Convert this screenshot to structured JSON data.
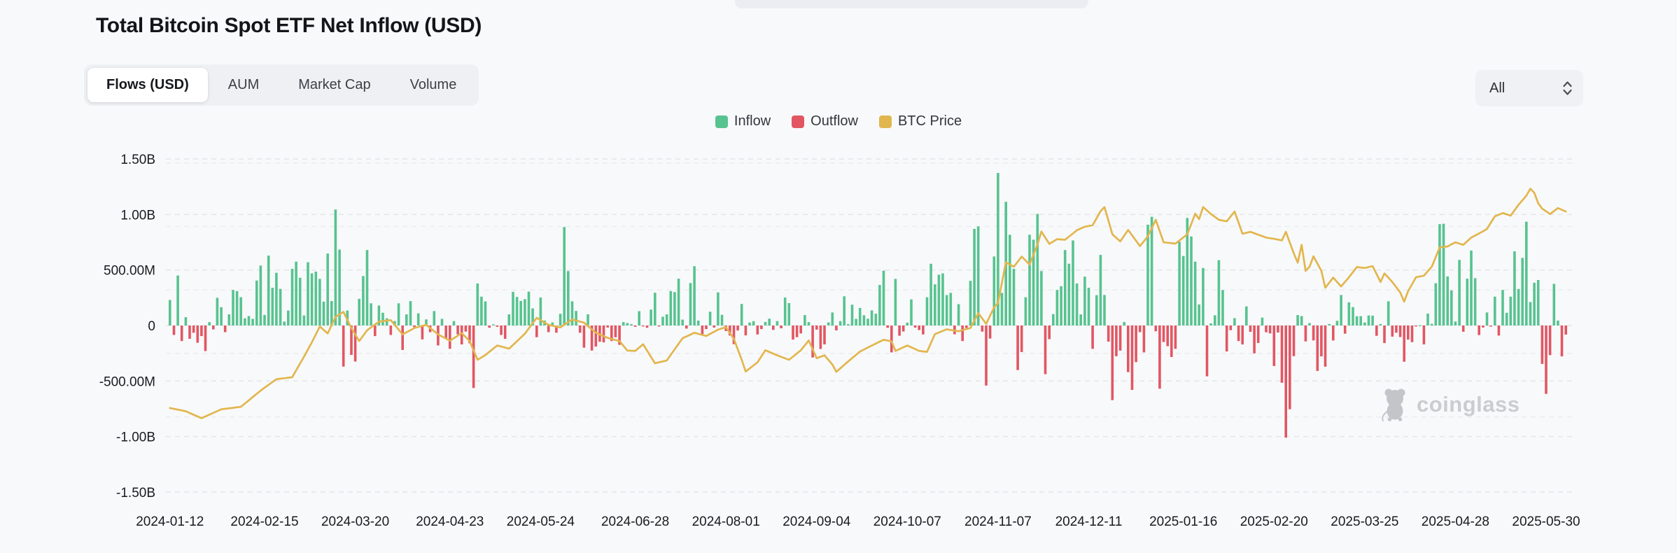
{
  "header": {
    "title": "Total Bitcoin Spot ETF Net Inflow (USD)"
  },
  "tabs": {
    "items": [
      {
        "label": "Flows (USD)",
        "active": true
      },
      {
        "label": "AUM",
        "active": false
      },
      {
        "label": "Market Cap",
        "active": false
      },
      {
        "label": "Volume",
        "active": false
      }
    ]
  },
  "range_select": {
    "value": "All"
  },
  "legend": [
    {
      "label": "Inflow",
      "color": "#57C390"
    },
    {
      "label": "Outflow",
      "color": "#E25663"
    },
    {
      "label": "BTC Price",
      "color": "#E2B64E"
    }
  ],
  "watermark": {
    "text": "coinglass"
  },
  "chart_data": {
    "type": "bar+line",
    "title": "Total Bitcoin Spot ETF Net Inflow (USD)",
    "subtitle": "",
    "legend_position": "top-center",
    "grid": "dashed-horizontal",
    "unit": "USD (M = millions, B = billions)",
    "colors": {
      "inflow": "#57C390",
      "outflow": "#E25663",
      "btc_price": "#E2B64E"
    },
    "y_axis": {
      "min_M": -1500,
      "max_M": 1500,
      "ticks": [
        {
          "v": 1500,
          "label": "1.50B"
        },
        {
          "v": 1000,
          "label": "1.00B"
        },
        {
          "v": 500,
          "label": "500.00M"
        },
        {
          "v": 0,
          "label": "0"
        },
        {
          "v": -500,
          "label": "-500.00M"
        },
        {
          "v": -1000,
          "label": "-1.00B"
        },
        {
          "v": -1500,
          "label": "-1.50B"
        }
      ]
    },
    "x_ticks": [
      {
        "i": 0,
        "label": "2024-01-12"
      },
      {
        "i": 24,
        "label": "2024-02-15"
      },
      {
        "i": 47,
        "label": "2024-03-20"
      },
      {
        "i": 71,
        "label": "2024-04-23"
      },
      {
        "i": 94,
        "label": "2024-05-24"
      },
      {
        "i": 118,
        "label": "2024-06-28"
      },
      {
        "i": 141,
        "label": "2024-08-01"
      },
      {
        "i": 164,
        "label": "2024-09-04"
      },
      {
        "i": 187,
        "label": "2024-10-07"
      },
      {
        "i": 210,
        "label": "2024-11-07"
      },
      {
        "i": 233,
        "label": "2024-12-11"
      },
      {
        "i": 257,
        "label": "2025-01-16"
      },
      {
        "i": 280,
        "label": "2025-02-20"
      },
      {
        "i": 303,
        "label": "2025-03-25"
      },
      {
        "i": 326,
        "label": "2025-04-28"
      },
      {
        "i": 349,
        "label": "2025-05-30"
      }
    ],
    "start_date": "2024-01-12",
    "series_note": "flows_M = daily net flow per US trading day in USD millions (positive = inflow bar, negative = outflow bar), estimated from chart",
    "flows_M": [
      230,
      -85,
      450,
      -140,
      75,
      -120,
      -65,
      -155,
      -95,
      -230,
      30,
      -35,
      250,
      165,
      -60,
      100,
      320,
      310,
      255,
      65,
      85,
      60,
      405,
      540,
      95,
      630,
      340,
      475,
      330,
      35,
      135,
      510,
      575,
      430,
      90,
      570,
      470,
      485,
      420,
      215,
      648,
      220,
      1045,
      684,
      -370,
      135,
      -265,
      -325,
      240,
      445,
      680,
      200,
      -95,
      180,
      115,
      65,
      -85,
      40,
      200,
      -220,
      100,
      220,
      -15,
      110,
      -125,
      55,
      -60,
      130,
      -180,
      60,
      -120,
      -210,
      40,
      -80,
      -170,
      -55,
      -160,
      -563,
      378,
      260,
      217,
      -20,
      10,
      -12,
      -85,
      -120,
      100,
      303,
      257,
      221,
      237,
      305,
      154,
      -105,
      252,
      45,
      -60,
      28,
      -65,
      105,
      887,
      490,
      218,
      131,
      -65,
      -200,
      101,
      -226,
      -190,
      -146,
      -152,
      -18,
      -140,
      -106,
      -174,
      31,
      22,
      12,
      -12,
      129,
      -9,
      -20,
      143,
      295,
      -3,
      79,
      100,
      310,
      301,
      422,
      53,
      -28,
      383,
      534,
      44,
      -78,
      -32,
      124,
      -18,
      298,
      96,
      -50,
      -90,
      -168,
      -45,
      194,
      -89,
      27,
      39,
      -81,
      -32,
      32,
      62,
      -40,
      40,
      -25,
      252,
      202,
      -127,
      -105,
      -71,
      94,
      30,
      -288,
      -37,
      -211,
      -170,
      28,
      117,
      -44,
      39,
      263,
      12,
      187,
      60,
      158,
      92,
      61,
      136,
      106,
      365,
      494,
      -21,
      -242,
      420,
      -92,
      -54,
      26,
      235,
      -19,
      -41,
      -81,
      254,
      556,
      371,
      458,
      470,
      274,
      294,
      -79,
      192,
      -140,
      -22,
      402,
      870,
      893,
      -55,
      -541,
      -117,
      622,
      1374,
      293,
      1114,
      817,
      510,
      -401,
      -239,
      255,
      818,
      773,
      1005,
      490,
      -438,
      -123,
      103,
      320,
      354,
      680,
      557,
      766,
      378,
      100,
      440,
      340,
      -210,
      273,
      636,
      275,
      -145,
      -672,
      -277,
      -226,
      31,
      -420,
      -580,
      -330,
      -60,
      -242,
      908,
      979,
      -52,
      -569,
      -149,
      -186,
      -284,
      -210,
      754,
      626,
      969,
      802,
      575,
      189,
      518,
      -458,
      19,
      92,
      588,
      319,
      -234,
      -42,
      66,
      -140,
      -171,
      172,
      -57,
      -251,
      -157,
      71,
      -61,
      -71,
      -365,
      -63,
      -516,
      -1010,
      -754,
      -276,
      94,
      85,
      -143,
      22,
      -134,
      -409,
      -278,
      -371,
      13,
      -135,
      42,
      275,
      -74,
      209,
      166,
      83,
      84,
      27,
      90,
      89,
      -93,
      13,
      -158,
      218,
      -100,
      -65,
      -104,
      -326,
      -127,
      -150,
      -1,
      2,
      -170,
      107,
      15,
      381,
      913,
      917,
      442,
      316,
      36,
      591,
      -56,
      422,
      675,
      426,
      -86,
      -18,
      117,
      -10,
      260,
      -91,
      320,
      115,
      260,
      668,
      329,
      609,
      935,
      211,
      385,
      410,
      -346,
      -616,
      -267,
      375,
      44,
      -278,
      -82
    ],
    "btc_price": {
      "axis": {
        "min_usd": 16350,
        "max_usd": 121250
      },
      "price_grid_usd": [
        40000,
        60000,
        80000,
        100000,
        120000
      ],
      "keyframes": [
        [
          0,
          42800
        ],
        [
          4,
          41800
        ],
        [
          8,
          39600
        ],
        [
          13,
          42400
        ],
        [
          18,
          43200
        ],
        [
          23,
          48300
        ],
        [
          27,
          51900
        ],
        [
          31,
          52500
        ],
        [
          34,
          59000
        ],
        [
          36,
          63500
        ],
        [
          38,
          68500
        ],
        [
          40,
          66300
        ],
        [
          42,
          71500
        ],
        [
          44,
          73100
        ],
        [
          46,
          68000
        ],
        [
          48,
          63900
        ],
        [
          50,
          67300
        ],
        [
          53,
          70000
        ],
        [
          56,
          70500
        ],
        [
          59,
          66000
        ],
        [
          62,
          68000
        ],
        [
          65,
          69000
        ],
        [
          68,
          66000
        ],
        [
          71,
          64000
        ],
        [
          74,
          66400
        ],
        [
          76,
          63900
        ],
        [
          78,
          58000
        ],
        [
          80,
          59500
        ],
        [
          83,
          62500
        ],
        [
          86,
          61500
        ],
        [
          90,
          66200
        ],
        [
          93,
          71200
        ],
        [
          96,
          69000
        ],
        [
          99,
          68200
        ],
        [
          102,
          70700
        ],
        [
          105,
          69700
        ],
        [
          108,
          66500
        ],
        [
          111,
          64900
        ],
        [
          114,
          63900
        ],
        [
          116,
          60900
        ],
        [
          118,
          60800
        ],
        [
          120,
          62900
        ],
        [
          123,
          56900
        ],
        [
          126,
          57800
        ],
        [
          130,
          64800
        ],
        [
          133,
          66500
        ],
        [
          136,
          65500
        ],
        [
          139,
          67500
        ],
        [
          141,
          68300
        ],
        [
          143,
          64600
        ],
        [
          145,
          58000
        ],
        [
          146,
          54300
        ],
        [
          149,
          57200
        ],
        [
          151,
          61000
        ],
        [
          154,
          59400
        ],
        [
          157,
          58000
        ],
        [
          160,
          61000
        ],
        [
          162,
          64100
        ],
        [
          164,
          58500
        ],
        [
          166,
          59400
        ],
        [
          168,
          56500
        ],
        [
          169,
          54200
        ],
        [
          172,
          57500
        ],
        [
          175,
          60600
        ],
        [
          178,
          62500
        ],
        [
          181,
          64300
        ],
        [
          183,
          63800
        ],
        [
          184,
          60800
        ],
        [
          187,
          62500
        ],
        [
          190,
          60800
        ],
        [
          192,
          60500
        ],
        [
          194,
          66100
        ],
        [
          197,
          67600
        ],
        [
          200,
          67000
        ],
        [
          203,
          68000
        ],
        [
          205,
          72700
        ],
        [
          207,
          69300
        ],
        [
          209,
          74500
        ],
        [
          210,
          75900
        ],
        [
          212,
          88700
        ],
        [
          214,
          87300
        ],
        [
          216,
          90500
        ],
        [
          218,
          88000
        ],
        [
          220,
          94300
        ],
        [
          221,
          98400
        ],
        [
          223,
          94500
        ],
        [
          225,
          96000
        ],
        [
          227,
          95800
        ],
        [
          230,
          98800
        ],
        [
          232,
          99900
        ],
        [
          234,
          100400
        ],
        [
          236,
          104800
        ],
        [
          237,
          106100
        ],
        [
          239,
          97500
        ],
        [
          241,
          95300
        ],
        [
          243,
          98900
        ],
        [
          246,
          93800
        ],
        [
          248,
          96900
        ],
        [
          250,
          102100
        ],
        [
          252,
          95000
        ],
        [
          255,
          94600
        ],
        [
          258,
          97500
        ],
        [
          260,
          104000
        ],
        [
          261,
          102300
        ],
        [
          262,
          106100
        ],
        [
          264,
          103900
        ],
        [
          266,
          102100
        ],
        [
          268,
          101600
        ],
        [
          270,
          104700
        ],
        [
          272,
          97700
        ],
        [
          274,
          98300
        ],
        [
          276,
          97400
        ],
        [
          278,
          96500
        ],
        [
          280,
          96100
        ],
        [
          282,
          95600
        ],
        [
          283,
          98300
        ],
        [
          285,
          91500
        ],
        [
          286,
          88600
        ],
        [
          287,
          94200
        ],
        [
          288,
          86000
        ],
        [
          289,
          87300
        ],
        [
          290,
          90600
        ],
        [
          292,
          86000
        ],
        [
          293,
          80700
        ],
        [
          295,
          83900
        ],
        [
          297,
          81100
        ],
        [
          299,
          84000
        ],
        [
          301,
          87200
        ],
        [
          303,
          86900
        ],
        [
          305,
          87500
        ],
        [
          307,
          82500
        ],
        [
          308,
          85200
        ],
        [
          310,
          82500
        ],
        [
          312,
          79200
        ],
        [
          313,
          76300
        ],
        [
          314,
          79600
        ],
        [
          316,
          84000
        ],
        [
          318,
          84500
        ],
        [
          320,
          87300
        ],
        [
          322,
          93400
        ],
        [
          324,
          93700
        ],
        [
          326,
          95000
        ],
        [
          328,
          94200
        ],
        [
          330,
          96500
        ],
        [
          332,
          97800
        ],
        [
          334,
          99200
        ],
        [
          336,
          103200
        ],
        [
          338,
          104200
        ],
        [
          340,
          103400
        ],
        [
          342,
          106800
        ],
        [
          344,
          109700
        ],
        [
          345,
          111900
        ],
        [
          346,
          110600
        ],
        [
          347,
          107300
        ],
        [
          348,
          105600
        ],
        [
          350,
          103900
        ],
        [
          352,
          105800
        ],
        [
          354,
          104700
        ]
      ]
    }
  }
}
